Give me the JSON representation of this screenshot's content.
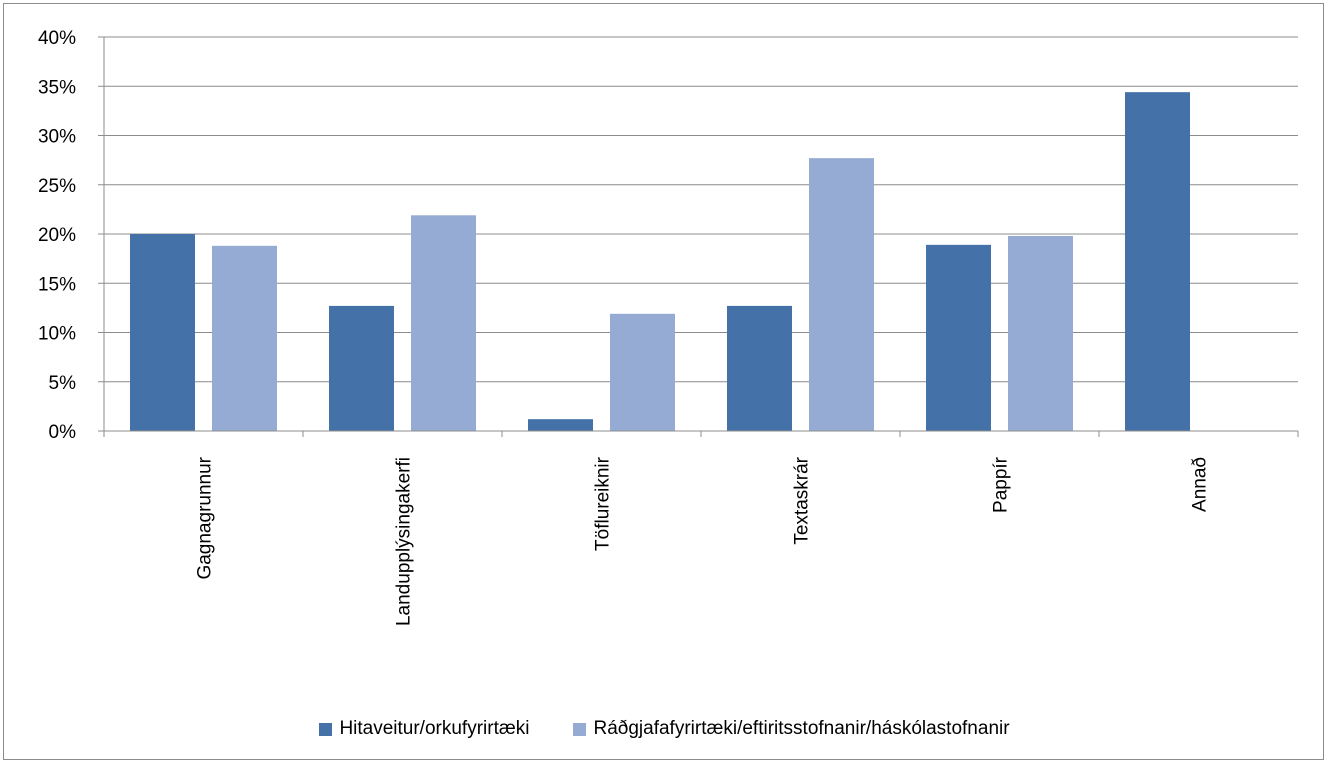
{
  "chart_data": {
    "type": "bar",
    "title": "",
    "xlabel": "",
    "ylabel": "",
    "categories": [
      "Gagnagrunnur",
      "Landupplýsingakerfi",
      "Töflureiknir",
      "Textaskrár",
      "Pappír",
      "Annað"
    ],
    "series": [
      {
        "name": "Hitaveitur/orkufyrirtæki",
        "color": "#4472a8",
        "values": [
          20.0,
          12.7,
          1.2,
          12.7,
          18.9,
          34.4
        ]
      },
      {
        "name": "Ráðgjafafyrirtæki/eftiritsstofnanir/háskólastofnanir",
        "color": "#95abd3",
        "values": [
          18.8,
          21.9,
          11.9,
          27.7,
          19.8,
          0
        ]
      }
    ],
    "ylim": [
      0,
      40
    ],
    "yticks": [
      0,
      5,
      10,
      15,
      20,
      25,
      30,
      35,
      40
    ],
    "ytick_labels": [
      "0%",
      "5%",
      "10%",
      "15%",
      "20%",
      "25%",
      "30%",
      "35%",
      "40%"
    ],
    "grid": true,
    "legend_position": "bottom"
  }
}
